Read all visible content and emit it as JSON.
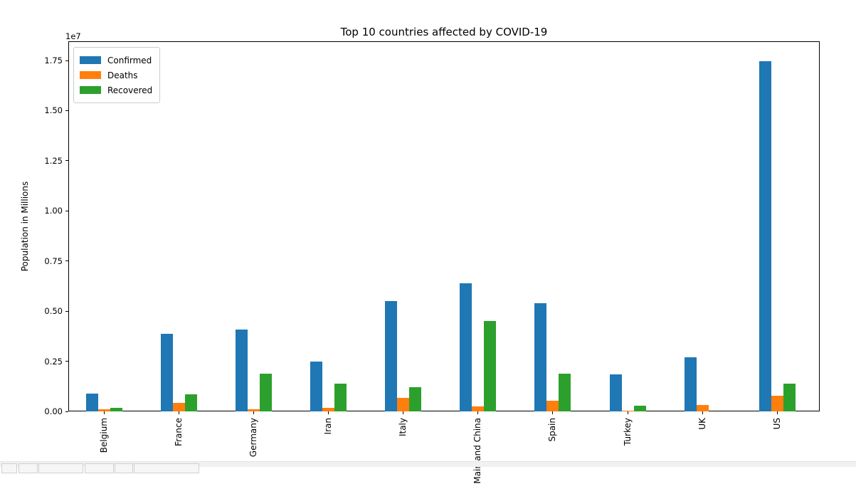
{
  "chart_data": {
    "type": "bar",
    "title": "Top 10 countries affected by COVID-19",
    "ylabel": "Population in Millions",
    "xlabel": "",
    "offset_text": "1e7",
    "categories": [
      "Belgium",
      "France",
      "Germany",
      "Iran",
      "Italy",
      "Mainland China",
      "Spain",
      "Turkey",
      "UK",
      "US"
    ],
    "series": [
      {
        "name": "Confirmed",
        "color": "#1f77b4",
        "values": [
          900000,
          3870000,
          4070000,
          2500000,
          5510000,
          6380000,
          5410000,
          1830000,
          2700000,
          17450000
        ]
      },
      {
        "name": "Deaths",
        "color": "#ff7f0e",
        "values": [
          100000,
          440000,
          110000,
          160000,
          660000,
          250000,
          530000,
          50000,
          330000,
          780000
        ]
      },
      {
        "name": "Recovered",
        "color": "#2ca02c",
        "values": [
          190000,
          860000,
          1880000,
          1400000,
          1210000,
          4510000,
          1880000,
          270000,
          0,
          1370000
        ]
      }
    ],
    "yticks": {
      "values": [
        0,
        2500000,
        5000000,
        7500000,
        10000000,
        12500000,
        15000000,
        17500000
      ],
      "labels": [
        "0.00",
        "0.25",
        "0.50",
        "0.75",
        "1.00",
        "1.25",
        "1.50",
        "1.75"
      ]
    },
    "ylim": [
      0,
      18460000
    ],
    "xtick_rotation": "vertical",
    "legend_position": "upper left",
    "grid": false
  }
}
